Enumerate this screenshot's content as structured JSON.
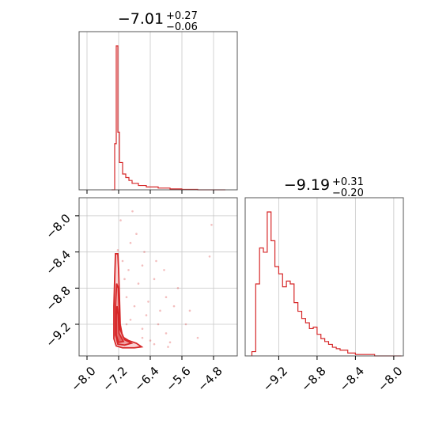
{
  "chart_data": [
    {
      "type": "histogram",
      "panel": "top-left",
      "title": {
        "value": "−7.01",
        "sup": "+0.27",
        "sub": "−0.06"
      },
      "xlim": [
        -8.2,
        -4.2
      ],
      "xticks": [
        -8.0,
        -7.2,
        -6.4,
        -5.6,
        -4.8
      ],
      "xtick_labels_visible": false,
      "grid": true,
      "color": "#d62728",
      "bins": [
        {
          "x0": -7.38,
          "x1": -7.3,
          "count": 0
        },
        {
          "x0": -7.3,
          "x1": -7.26,
          "count": 0.32
        },
        {
          "x0": -7.26,
          "x1": -7.22,
          "count": 1.0
        },
        {
          "x0": -7.22,
          "x1": -7.18,
          "count": 0.4
        },
        {
          "x0": -7.18,
          "x1": -7.1,
          "count": 0.19
        },
        {
          "x0": -7.1,
          "x1": -7.02,
          "count": 0.11
        },
        {
          "x0": -7.02,
          "x1": -6.94,
          "count": 0.085
        },
        {
          "x0": -6.94,
          "x1": -6.86,
          "count": 0.065
        },
        {
          "x0": -6.86,
          "x1": -6.7,
          "count": 0.045
        },
        {
          "x0": -6.7,
          "x1": -6.5,
          "count": 0.03
        },
        {
          "x0": -6.5,
          "x1": -6.2,
          "count": 0.02
        },
        {
          "x0": -6.2,
          "x1": -5.9,
          "count": 0.012
        },
        {
          "x0": -5.9,
          "x1": -5.6,
          "count": 0.006
        },
        {
          "x0": -5.6,
          "x1": -5.2,
          "count": 0.003
        },
        {
          "x0": -5.2,
          "x1": -4.5,
          "count": 0.0
        }
      ]
    },
    {
      "type": "scatter-contour",
      "panel": "bottom-left",
      "xlim": [
        -8.2,
        -4.2
      ],
      "ylim": [
        -9.55,
        -7.8
      ],
      "xticks": [
        -8.0,
        -7.2,
        -6.4,
        -5.6,
        -4.8
      ],
      "xtick_labels": [
        "−8.0",
        "−7.2",
        "−6.4",
        "−5.6",
        "−4.8"
      ],
      "yticks": [
        -8.0,
        -8.4,
        -8.8,
        -9.2
      ],
      "ytick_labels": [
        "−8.0",
        "−8.4",
        "−8.8",
        "−9.2"
      ],
      "grid": true,
      "color": "#d62728",
      "contour_levels": [
        [
          [
            -7.28,
            -8.42
          ],
          [
            -7.22,
            -8.42
          ],
          [
            -7.2,
            -8.6
          ],
          [
            -7.18,
            -8.9
          ],
          [
            -7.16,
            -9.2
          ],
          [
            -7.1,
            -9.34
          ],
          [
            -6.95,
            -9.38
          ],
          [
            -6.75,
            -9.41
          ],
          [
            -6.62,
            -9.45
          ],
          [
            -6.8,
            -9.46
          ],
          [
            -7.1,
            -9.46
          ],
          [
            -7.26,
            -9.44
          ],
          [
            -7.32,
            -9.36
          ],
          [
            -7.32,
            -9.0
          ],
          [
            -7.3,
            -8.7
          ],
          [
            -7.28,
            -8.42
          ]
        ],
        [
          [
            -7.25,
            -8.75
          ],
          [
            -7.21,
            -8.8
          ],
          [
            -7.19,
            -9.0
          ],
          [
            -7.17,
            -9.25
          ],
          [
            -7.05,
            -9.37
          ],
          [
            -6.88,
            -9.41
          ],
          [
            -7.05,
            -9.43
          ],
          [
            -7.22,
            -9.42
          ],
          [
            -7.28,
            -9.32
          ],
          [
            -7.28,
            -9.0
          ],
          [
            -7.25,
            -8.75
          ]
        ],
        [
          [
            -7.24,
            -9.0
          ],
          [
            -7.21,
            -9.1
          ],
          [
            -7.19,
            -9.3
          ],
          [
            -7.08,
            -9.39
          ],
          [
            -7.2,
            -9.4
          ],
          [
            -7.26,
            -9.32
          ],
          [
            -7.26,
            -9.1
          ],
          [
            -7.24,
            -9.0
          ]
        ]
      ],
      "sample_points": [
        [
          -7.22,
          -8.38
        ],
        [
          -7.1,
          -8.5
        ],
        [
          -6.9,
          -8.3
        ],
        [
          -6.6,
          -8.55
        ],
        [
          -6.3,
          -8.7
        ],
        [
          -6.0,
          -8.9
        ],
        [
          -5.8,
          -9.0
        ],
        [
          -5.5,
          -9.2
        ],
        [
          -5.2,
          -9.35
        ],
        [
          -4.9,
          -8.45
        ],
        [
          -4.85,
          -8.1
        ],
        [
          -6.75,
          -8.2
        ],
        [
          -7.0,
          -8.9
        ],
        [
          -6.8,
          -9.0
        ],
        [
          -6.5,
          -9.1
        ],
        [
          -6.2,
          -9.2
        ],
        [
          -6.0,
          -9.3
        ],
        [
          -5.9,
          -9.4
        ],
        [
          -6.4,
          -9.38
        ],
        [
          -6.6,
          -9.25
        ],
        [
          -6.9,
          -9.15
        ],
        [
          -7.05,
          -8.7
        ],
        [
          -6.95,
          -8.6
        ],
        [
          -6.7,
          -8.75
        ],
        [
          -6.45,
          -8.95
        ],
        [
          -6.15,
          -9.05
        ],
        [
          -5.7,
          -8.8
        ],
        [
          -5.4,
          -9.05
        ],
        [
          -6.85,
          -7.95
        ],
        [
          -7.15,
          -8.05
        ],
        [
          -6.55,
          -8.4
        ],
        [
          -6.25,
          -8.5
        ],
        [
          -5.95,
          -9.45
        ],
        [
          -6.7,
          -9.45
        ],
        [
          -6.3,
          -9.42
        ],
        [
          -7.0,
          -9.2
        ],
        [
          -6.6,
          -9.35
        ],
        [
          -6.05,
          -8.6
        ]
      ]
    },
    {
      "type": "histogram",
      "panel": "bottom-right",
      "title": {
        "value": "−9.19",
        "sup": "+0.31",
        "sub": "−0.20"
      },
      "xlim": [
        -9.55,
        -7.9
      ],
      "xticks": [
        -9.2,
        -8.8,
        -8.4,
        -8.0
      ],
      "xtick_labels": [
        "−9.2",
        "−8.8",
        "−8.4",
        "−8.0"
      ],
      "grid": true,
      "color": "#d62728",
      "bins": [
        {
          "x0": -9.48,
          "x1": -9.44,
          "count": 0.03
        },
        {
          "x0": -9.44,
          "x1": -9.4,
          "count": 0.5
        },
        {
          "x0": -9.4,
          "x1": -9.36,
          "count": 0.75
        },
        {
          "x0": -9.36,
          "x1": -9.32,
          "count": 0.72
        },
        {
          "x0": -9.32,
          "x1": -9.28,
          "count": 1.0
        },
        {
          "x0": -9.28,
          "x1": -9.24,
          "count": 0.8
        },
        {
          "x0": -9.24,
          "x1": -9.2,
          "count": 0.62
        },
        {
          "x0": -9.2,
          "x1": -9.16,
          "count": 0.57
        },
        {
          "x0": -9.16,
          "x1": -9.12,
          "count": 0.48
        },
        {
          "x0": -9.12,
          "x1": -9.08,
          "count": 0.52
        },
        {
          "x0": -9.08,
          "x1": -9.04,
          "count": 0.5
        },
        {
          "x0": -9.04,
          "x1": -9.0,
          "count": 0.37
        },
        {
          "x0": -9.0,
          "x1": -8.96,
          "count": 0.31
        },
        {
          "x0": -8.96,
          "x1": -8.92,
          "count": 0.26
        },
        {
          "x0": -8.92,
          "x1": -8.88,
          "count": 0.23
        },
        {
          "x0": -8.88,
          "x1": -8.84,
          "count": 0.19
        },
        {
          "x0": -8.84,
          "x1": -8.8,
          "count": 0.2
        },
        {
          "x0": -8.8,
          "x1": -8.76,
          "count": 0.15
        },
        {
          "x0": -8.76,
          "x1": -8.72,
          "count": 0.12
        },
        {
          "x0": -8.72,
          "x1": -8.68,
          "count": 0.1
        },
        {
          "x0": -8.68,
          "x1": -8.64,
          "count": 0.08
        },
        {
          "x0": -8.64,
          "x1": -8.6,
          "count": 0.06
        },
        {
          "x0": -8.6,
          "x1": -8.56,
          "count": 0.05
        },
        {
          "x0": -8.56,
          "x1": -8.48,
          "count": 0.04
        },
        {
          "x0": -8.48,
          "x1": -8.4,
          "count": 0.02
        },
        {
          "x0": -8.4,
          "x1": -8.2,
          "count": 0.01
        },
        {
          "x0": -8.2,
          "x1": -7.92,
          "count": 0.0
        }
      ]
    }
  ]
}
